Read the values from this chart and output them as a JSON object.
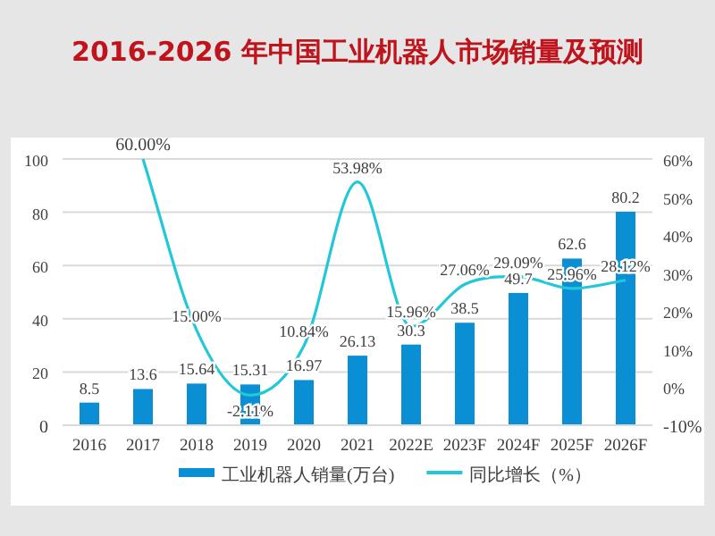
{
  "chart_data": {
    "type": "bar",
    "title": "2016-2026 年中国工业机器人市场销量及预测",
    "categories": [
      "2016",
      "2017",
      "2018",
      "2019",
      "2020",
      "2021",
      "2022E",
      "2023F",
      "2024F",
      "2025F",
      "2026F"
    ],
    "series": [
      {
        "name": "工业机器人销量(万台)",
        "color": "#0a8fd4",
        "values": [
          8.5,
          13.6,
          15.64,
          15.31,
          16.97,
          26.13,
          30.3,
          38.5,
          49.7,
          62.6,
          80.2
        ],
        "value_labels": [
          "8.5",
          "13.6",
          "15.64",
          "15.31",
          "16.97",
          "26.13",
          "30.3",
          "38.5",
          "49.7",
          "62.6",
          "80.2"
        ]
      },
      {
        "name": "同比增长（%）",
        "type": "line",
        "axis": "y2",
        "color": "#22c8d8",
        "marker": "none",
        "values": [
          null,
          60.0,
          15.0,
          -2.11,
          10.84,
          53.98,
          15.96,
          27.06,
          29.09,
          25.96,
          28.12
        ],
        "value_labels": [
          null,
          "60.00%",
          "15.00%",
          "-2.11%",
          "10.84%",
          "53.98%",
          "15.96%",
          "27.06%",
          "29.09%",
          "25.96%",
          "28.12%"
        ]
      }
    ],
    "ylim": [
      0,
      100
    ],
    "yticks": [
      0,
      20,
      40,
      60,
      80,
      100
    ],
    "y2lim": [
      -10,
      60
    ],
    "y2ticks": [
      {
        "value": -10,
        "label": "-10%"
      },
      {
        "value": 0,
        "label": "0%"
      },
      {
        "value": 10,
        "label": "10%"
      },
      {
        "value": 20,
        "label": "20%"
      },
      {
        "value": 30,
        "label": "30%"
      },
      {
        "value": 40,
        "label": "40%"
      },
      {
        "value": 50,
        "label": "50%"
      },
      {
        "value": 60,
        "label": "60%"
      }
    ],
    "grid": "y",
    "legend": "bottom"
  }
}
